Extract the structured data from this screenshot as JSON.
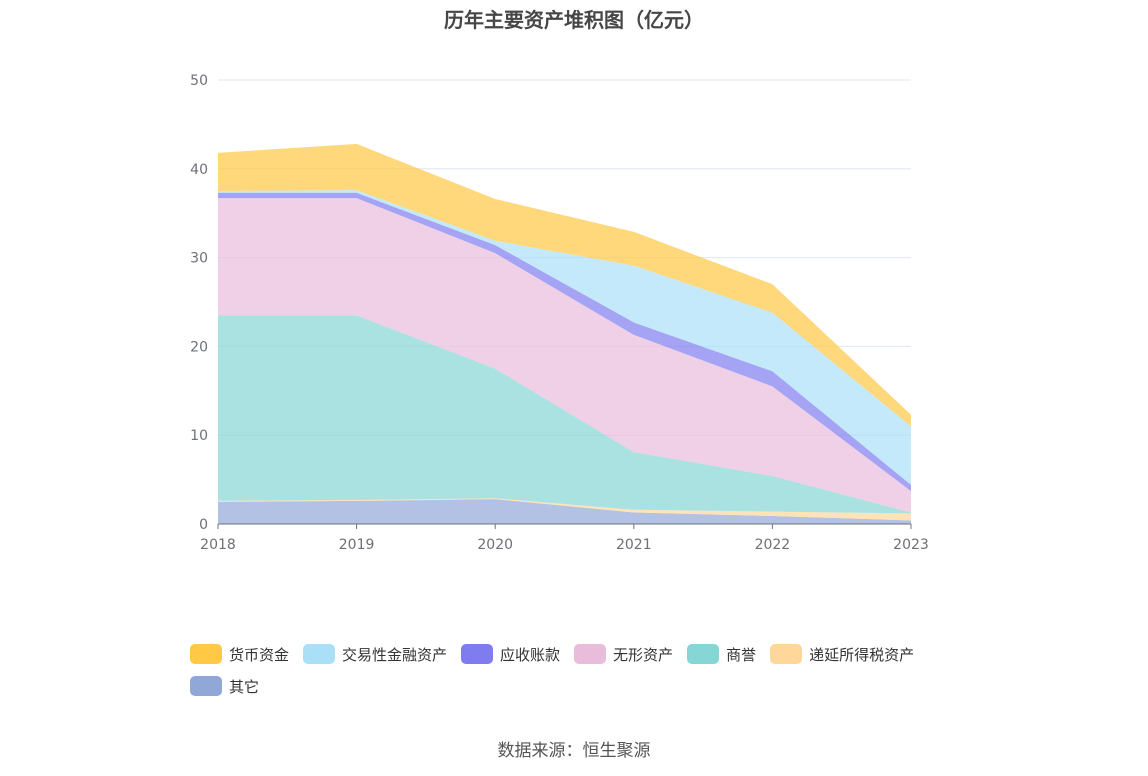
{
  "title": "历年主要资产堆积图（亿元）",
  "source": "数据来源：恒生聚源",
  "chart_data": {
    "type": "area",
    "stacked": true,
    "categories": [
      "2018",
      "2019",
      "2020",
      "2021",
      "2022",
      "2023"
    ],
    "ylim": [
      0,
      50
    ],
    "yticks": [
      "0",
      "10",
      "20",
      "30",
      "40",
      "50"
    ],
    "grid": true,
    "legend_position": "bottom",
    "series": [
      {
        "name": "其它",
        "color": "#91a7d8",
        "values": [
          2.5,
          2.6,
          2.8,
          1.3,
          0.9,
          0.4
        ]
      },
      {
        "name": "递延所得税资产",
        "color": "#ffd79a",
        "values": [
          0.1,
          0.1,
          0.1,
          0.3,
          0.5,
          0.8
        ]
      },
      {
        "name": "商誉",
        "color": "#86d6d6",
        "values": [
          20.9,
          20.8,
          14.6,
          6.5,
          4.0,
          0.1
        ]
      },
      {
        "name": "无形资产",
        "color": "#e9bcdb",
        "values": [
          13.2,
          13.2,
          13.0,
          13.2,
          10.1,
          2.4
        ]
      },
      {
        "name": "应收账款",
        "color": "#7f7cf0",
        "values": [
          0.6,
          0.6,
          0.9,
          1.4,
          1.7,
          0.7
        ]
      },
      {
        "name": "交易性金融资产",
        "color": "#a9e0f8",
        "values": [
          0.2,
          0.3,
          0.5,
          6.4,
          6.6,
          6.6
        ]
      },
      {
        "name": "货币资金",
        "color": "#ffc845",
        "values": [
          4.3,
          5.2,
          4.7,
          3.8,
          3.2,
          1.3
        ]
      }
    ],
    "legend_order": [
      "货币资金",
      "交易性金融资产",
      "应收账款",
      "无形资产",
      "商誉",
      "递延所得税资产",
      "其它"
    ]
  }
}
